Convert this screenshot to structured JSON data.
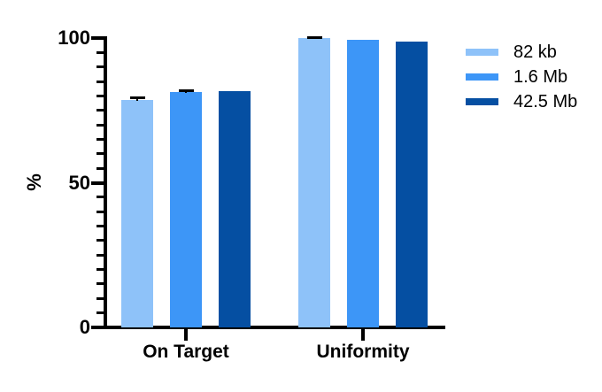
{
  "chart_data": {
    "type": "bar",
    "title": "",
    "categories": [
      "On Target",
      "Uniformity"
    ],
    "series": [
      {
        "name": "82 kb",
        "color": "#8EC2F9",
        "values": [
          78.5,
          99.9
        ],
        "errors": [
          0.8,
          0.3
        ]
      },
      {
        "name": "1.6 Mb",
        "color": "#3D96F7",
        "values": [
          81.3,
          99.3
        ],
        "errors": [
          0.5,
          0
        ]
      },
      {
        "name": "42.5 Mb",
        "color": "#054FA2",
        "values": [
          81.7,
          98.8
        ],
        "errors": [
          0,
          0
        ]
      }
    ],
    "xlabel": "",
    "ylabel": "%",
    "ylim": [
      0,
      100
    ],
    "yticks_major": [
      0,
      50,
      100
    ],
    "ytick_minor_step": 5,
    "grid": false,
    "legend_position": "right",
    "axis_color": "#000000",
    "text_color": "#000000",
    "error_bar_color": "#000000",
    "background": "#FFFFFF"
  }
}
